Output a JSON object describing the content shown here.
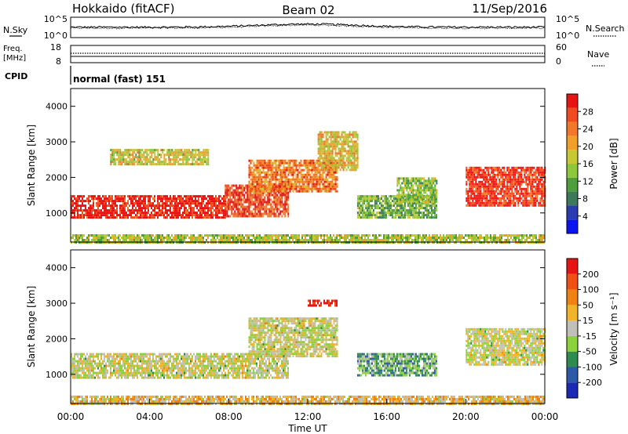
{
  "header": {
    "station": "Hokkaido (fitACF)",
    "beam": "Beam 02",
    "date": "11/Sep/2016"
  },
  "strips": {
    "nsky_label": "N.Sky",
    "nsearch_label": "N.Search",
    "noise_ticks_left": [
      "10^5",
      "10^0"
    ],
    "noise_ticks_right": [
      "10^5",
      "10^0"
    ],
    "freq_label_1": "Freq.",
    "freq_label_2": "[MHz]",
    "freq_ticks": [
      "18",
      "8"
    ],
    "nave_label": "Nave",
    "nave_ticks": [
      "60",
      "0"
    ],
    "cpid_label": "CPID",
    "cpid_text": "normal (fast) 151"
  },
  "chart_data": [
    {
      "type": "heatmap",
      "name": "power",
      "ylabel": "Slant Range [km]",
      "yticks": [
        "1000",
        "2000",
        "3000",
        "4000"
      ],
      "ylim": [
        180,
        4500
      ],
      "xlim": [
        0,
        24
      ],
      "colorbar_label": "Power [dB]",
      "colorbar_ticks": [
        "4",
        "8",
        "12",
        "16",
        "20",
        "24",
        "28"
      ],
      "colorbar_colors": [
        "#0a14f0",
        "#2a3cb0",
        "#3c7a5a",
        "#4f9e3c",
        "#8cc83a",
        "#c8c832",
        "#f0a028",
        "#f07828",
        "#f04a20",
        "#e81414"
      ],
      "regions": [
        {
          "t0": 0.0,
          "t1": 7.8,
          "r0": 900,
          "r1": 1500,
          "level": 0.95
        },
        {
          "t0": 7.8,
          "t1": 11.0,
          "r0": 900,
          "r1": 1800,
          "level": 0.85
        },
        {
          "t0": 9.0,
          "t1": 13.5,
          "r0": 1600,
          "r1": 2500,
          "level": 0.75
        },
        {
          "t0": 12.5,
          "t1": 14.5,
          "r0": 2200,
          "r1": 3300,
          "level": 0.6
        },
        {
          "t0": 14.5,
          "t1": 18.5,
          "r0": 900,
          "r1": 1500,
          "level": 0.4
        },
        {
          "t0": 16.5,
          "t1": 18.5,
          "r0": 1300,
          "r1": 2000,
          "level": 0.45
        },
        {
          "t0": 20.0,
          "t1": 24.0,
          "r0": 1200,
          "r1": 2300,
          "level": 0.9
        },
        {
          "t0": 2.0,
          "t1": 7.0,
          "r0": 2400,
          "r1": 2800,
          "level": 0.55
        },
        {
          "t0": 0.0,
          "t1": 24.0,
          "r0": 180,
          "r1": 400,
          "level": 0.5
        }
      ]
    },
    {
      "type": "heatmap",
      "name": "velocity",
      "ylabel": "Slant Range [km]",
      "yticks": [
        "1000",
        "2000",
        "3000",
        "4000"
      ],
      "ylim": [
        180,
        4500
      ],
      "xlim": [
        0,
        24
      ],
      "xlabel": "Time UT",
      "xticks": [
        "00:00",
        "04:00",
        "08:00",
        "12:00",
        "16:00",
        "20:00",
        "00:00"
      ],
      "colorbar_label": "Velocity [m s⁻¹]",
      "colorbar_ticks": [
        "200",
        "100",
        "50",
        "15",
        "-15",
        "-50",
        "-100",
        "-200"
      ],
      "colorbar_colors": [
        "#1a2ab4",
        "#2c5aa8",
        "#2e8c50",
        "#8cd23c",
        "#c0c0b8",
        "#f0b428",
        "#f08214",
        "#f05014",
        "#e81414"
      ],
      "regions": [
        {
          "t0": 0.0,
          "t1": 11.0,
          "r0": 900,
          "r1": 1600,
          "level": 0.5
        },
        {
          "t0": 9.0,
          "t1": 13.5,
          "r0": 1500,
          "r1": 2600,
          "level": 0.5
        },
        {
          "t0": 14.5,
          "t1": 18.5,
          "r0": 1000,
          "r1": 1600,
          "level": 0.35
        },
        {
          "t0": 20.0,
          "t1": 24.0,
          "r0": 1300,
          "r1": 2300,
          "level": 0.5
        },
        {
          "t0": 12.0,
          "t1": 13.5,
          "r0": 2950,
          "r1": 3100,
          "level": 0.95
        },
        {
          "t0": 0.0,
          "t1": 24.0,
          "r0": 180,
          "r1": 400,
          "level": 0.6
        }
      ]
    }
  ]
}
